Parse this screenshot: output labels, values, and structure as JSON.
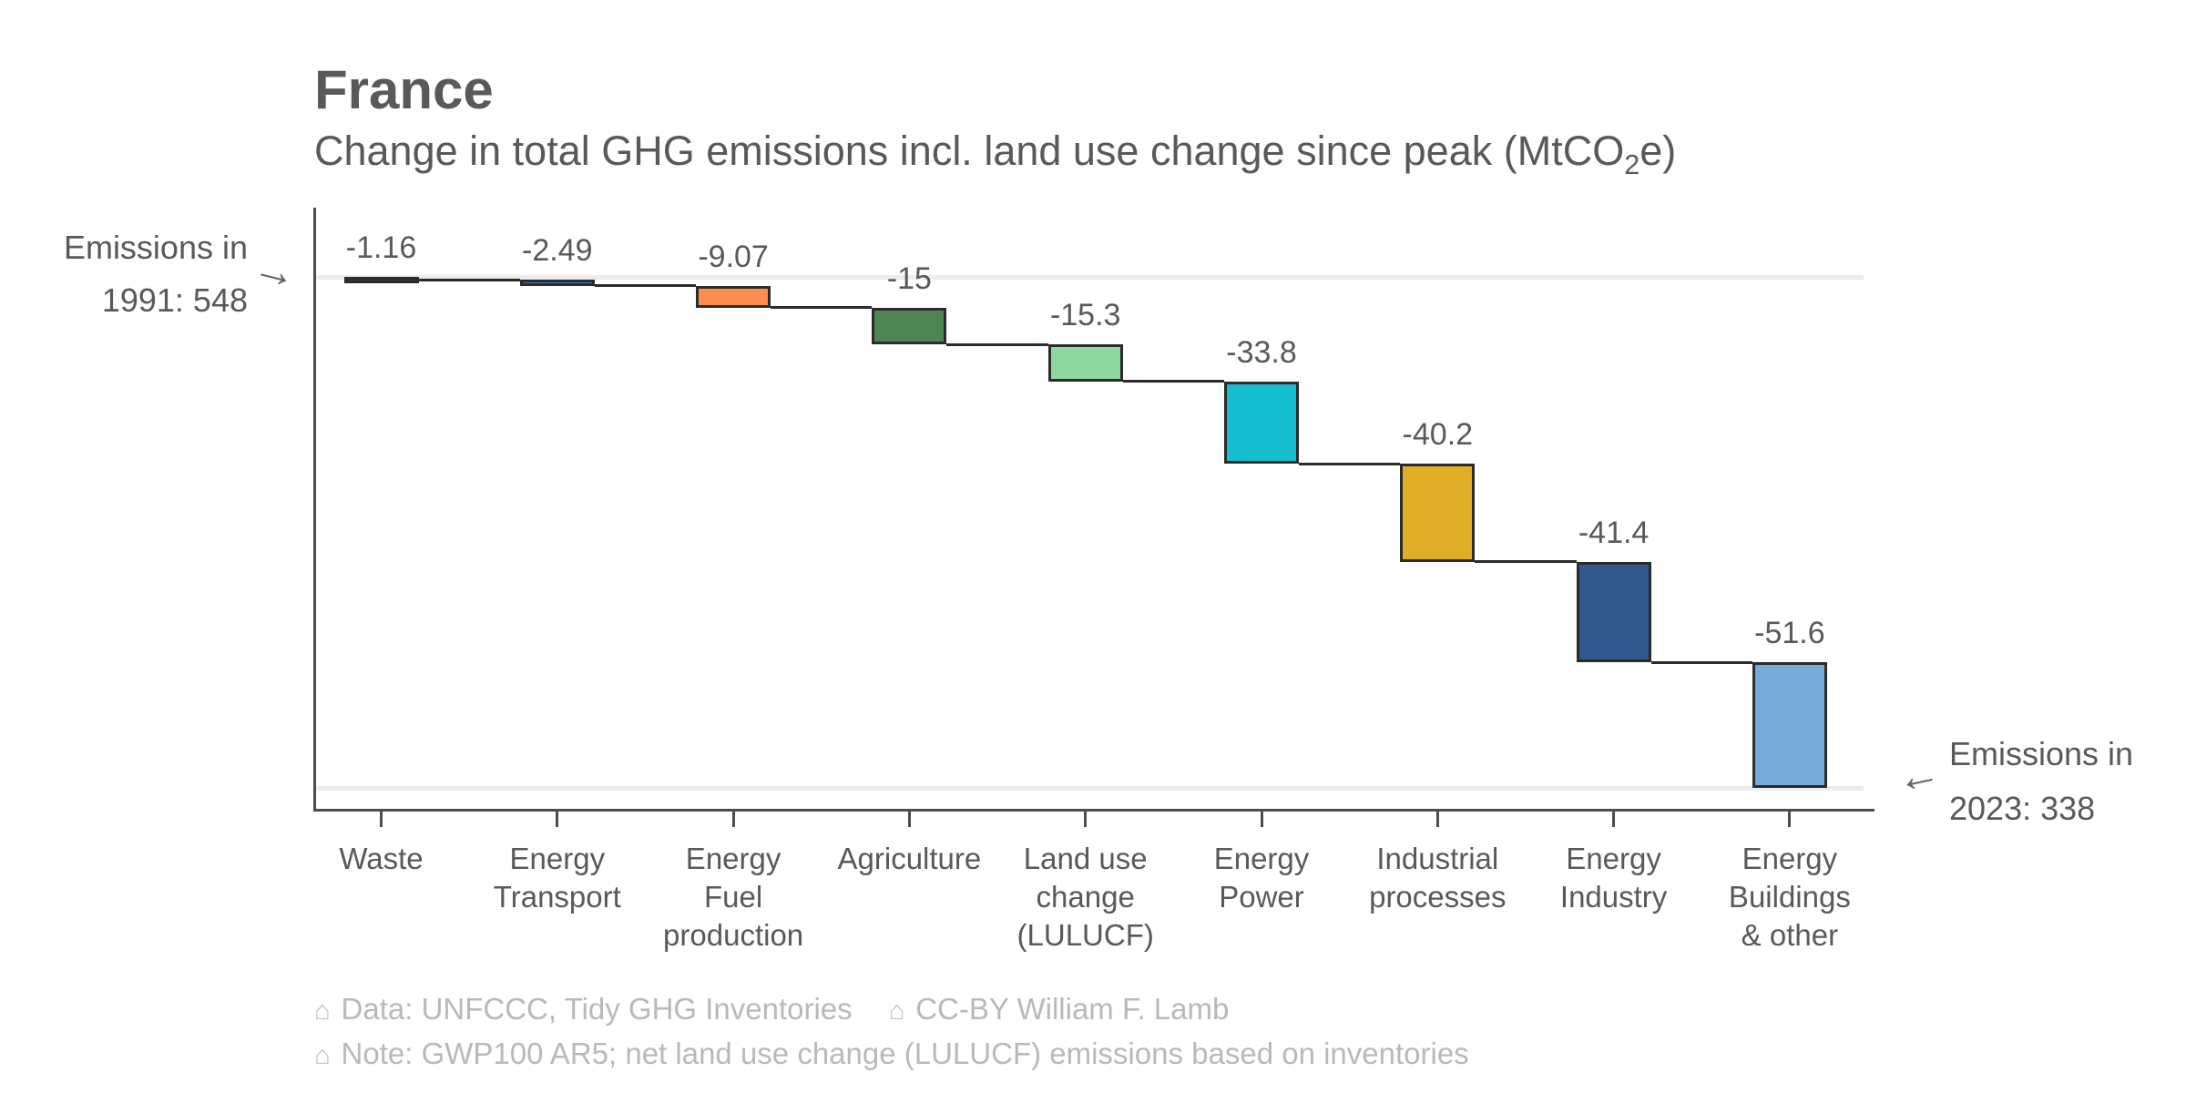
{
  "header": {
    "title": "France",
    "subtitle_pre": "Change in total GHG emissions incl. land use change since peak (MtCO",
    "subtitle_sub": "2",
    "subtitle_post": "e)"
  },
  "chart_data": {
    "type": "bar",
    "subtype": "waterfall",
    "title": "France",
    "subtitle": "Change in total GHG emissions incl. land use change since peak (MtCO2e)",
    "start": {
      "label_line1": "Emissions in",
      "label_line2": "1991: 548",
      "year": 1991,
      "value": 548
    },
    "end": {
      "label_line1": "Emissions in",
      "label_line2": "2023: 338",
      "year": 2023,
      "value": 338
    },
    "categories": [
      "Waste",
      "Energy\nTransport",
      "Energy\nFuel\nproduction",
      "Agriculture",
      "Land use\nchange\n(LULUCF)",
      "Energy\nPower",
      "Industrial\nprocesses",
      "Energy\nIndustry",
      "Energy\nBuildings\n& other"
    ],
    "values": [
      -1.16,
      -2.49,
      -9.07,
      -15,
      -15.3,
      -33.8,
      -40.2,
      -41.4,
      -51.6
    ],
    "value_labels": [
      "-1.16",
      "-2.49",
      "-9.07",
      "-15",
      "-15.3",
      "-33.8",
      "-40.2",
      "-41.4",
      "-51.6"
    ],
    "bar_colors": [
      "#3a3a3a",
      "#3d7bb7",
      "#fc8d4f",
      "#4f8553",
      "#8fd6a0",
      "#17becf",
      "#e0ad27",
      "#33588f",
      "#76aad8"
    ],
    "bar_border_color": "#2b2b2b",
    "gridline_color": "#ececec",
    "axis_color": "#4d4d4d",
    "text_color": "#595959",
    "grid": "horizontal-start-end-only",
    "legend": "none",
    "arrow_right_glyph": "→",
    "arrow_left_glyph": "←"
  },
  "footer": {
    "icon_glyph": "⌂",
    "line1_item1": "Data: UNFCCC, Tidy GHG Inventories",
    "line1_item2": "CC-BY William F. Lamb",
    "line2_item1": "Note: GWP100 AR5; net land use change (LULUCF) emissions based on inventories"
  }
}
